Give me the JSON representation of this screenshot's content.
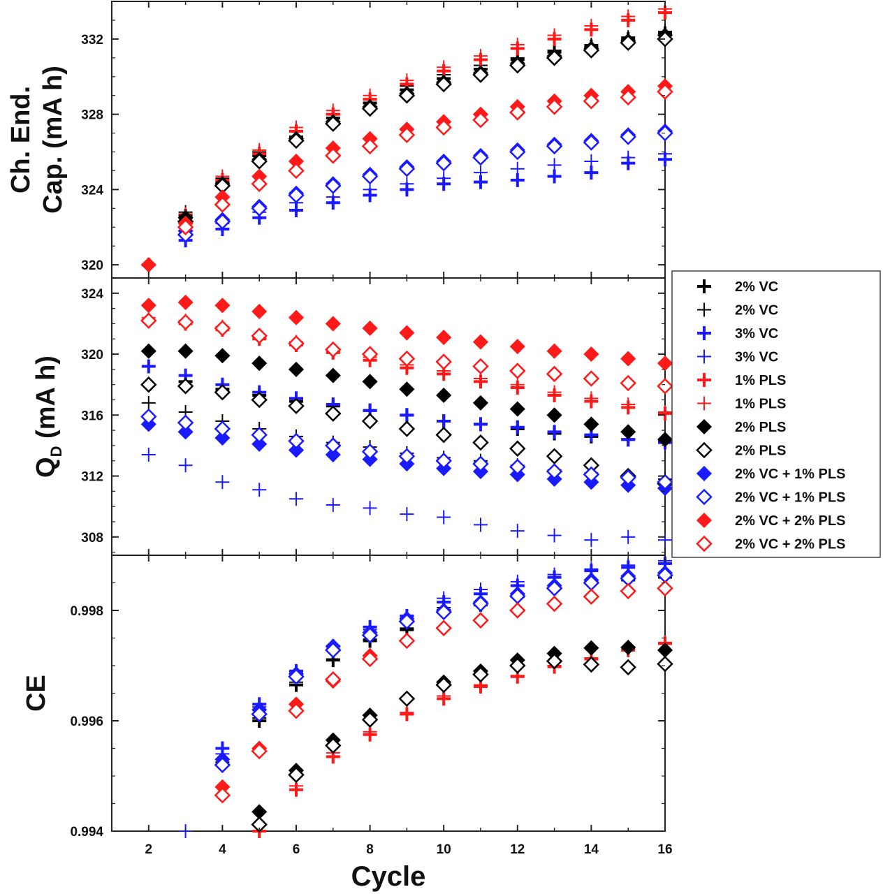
{
  "chart_data": {
    "type": "scatter",
    "x_axis": {
      "label": "Cycle",
      "range": [
        1,
        16
      ],
      "ticks": [
        2,
        4,
        6,
        8,
        10,
        12,
        14,
        16
      ],
      "tick_labels": [
        "2",
        "4",
        "6",
        "8",
        "10",
        "12",
        "14",
        "16"
      ]
    },
    "panels": [
      {
        "id": "charge_end_capacity",
        "ylabel_lines": [
          "Ch. End.",
          "Cap. (mA h)"
        ],
        "ylim": [
          319.3,
          334.0
        ],
        "yticks": [
          320,
          324,
          328,
          332
        ],
        "ytick_labels": [
          "320",
          "324",
          "328",
          "332"
        ]
      },
      {
        "id": "discharge_capacity",
        "ylabel": "QD (mA h)",
        "ylabel_main": "Q",
        "ylabel_sub": "D",
        "ylabel_rest": " (mA h)",
        "ylim": [
          306.8,
          325.0
        ],
        "yticks": [
          308,
          312,
          316,
          320,
          324
        ],
        "ytick_labels": [
          "308",
          "312",
          "316",
          "320",
          "324"
        ]
      },
      {
        "id": "coulombic_efficiency",
        "ylabel": "CE",
        "ylim": [
          0.994,
          0.999
        ],
        "yticks": [
          0.994,
          0.996,
          0.998
        ],
        "ytick_labels": [
          "0.994",
          "0.996",
          "0.998"
        ]
      }
    ],
    "legend": {
      "placement": "right",
      "entries": [
        {
          "label": "2% VC",
          "marker": "plus-bold",
          "color": "#000000"
        },
        {
          "label": "2% VC",
          "marker": "plus-thin",
          "color": "#000000"
        },
        {
          "label": "3% VC",
          "marker": "plus-bold",
          "color": "#1a1aff"
        },
        {
          "label": "3% VC",
          "marker": "plus-thin",
          "color": "#1a1aff"
        },
        {
          "label": "1% PLS",
          "marker": "plus-bold",
          "color": "#ff1a1a"
        },
        {
          "label": "1% PLS",
          "marker": "plus-thin",
          "color": "#ff1a1a"
        },
        {
          "label": "2% PLS",
          "marker": "diamond-filled",
          "color": "#000000"
        },
        {
          "label": "2% PLS",
          "marker": "diamond-open",
          "color": "#000000"
        },
        {
          "label": "2% VC + 1%  PLS",
          "marker": "diamond-filled",
          "color": "#1a1aff"
        },
        {
          "label": "2% VC + 1%  PLS",
          "marker": "diamond-open",
          "color": "#1a1aff"
        },
        {
          "label": "2% VC + 2%  PLS",
          "marker": "diamond-filled",
          "color": "#ff1a1a"
        },
        {
          "label": "2% VC + 2%  PLS",
          "marker": "diamond-open",
          "color": "#ff1a1a"
        }
      ]
    },
    "series": [
      {
        "name": "2% VC",
        "marker": "plus-bold",
        "color": "#000000",
        "x": [
          3,
          4,
          5,
          6,
          7,
          8,
          9,
          10,
          11,
          12,
          13,
          14,
          15,
          16
        ],
        "charge_end_capacity": [
          322.6,
          324.4,
          325.8,
          326.8,
          327.8,
          328.6,
          329.3,
          329.9,
          330.4,
          330.9,
          331.3,
          331.6,
          332.0,
          332.3
        ],
        "discharge_capacity": [
          318.2,
          317.7,
          317.3,
          316.9,
          316.6,
          316.3,
          316.0,
          315.6,
          315.4,
          315.1,
          314.8,
          314.6,
          314.4,
          314.3
        ],
        "coulombic_efficiency": [
          null,
          0.9952,
          0.996,
          0.99665,
          0.9971,
          0.99745,
          0.99765,
          0.998,
          0.9981,
          0.99825,
          0.9984,
          0.9985,
          0.99855,
          0.9986
        ]
      },
      {
        "name": "2% VC",
        "marker": "plus-thin",
        "color": "#000000",
        "x": [
          2,
          3,
          4,
          5,
          6,
          7,
          8,
          9,
          10,
          11,
          12,
          13,
          14,
          15,
          16
        ],
        "charge_end_capacity": [
          null,
          322.8,
          324.6,
          326.0,
          327.1,
          328.0,
          328.8,
          329.5,
          330.1,
          330.6,
          331.0,
          331.4,
          331.7,
          332.1,
          332.4
        ],
        "discharge_capacity": [
          316.8,
          316.2,
          315.6,
          315.1,
          314.6,
          314.2,
          313.9,
          313.5,
          313.2,
          313.0,
          312.7,
          312.4,
          312.2,
          312.0,
          311.8
        ],
        "coulombic_efficiency": [
          null,
          null,
          0.99525,
          0.99605,
          0.9967,
          0.99712,
          0.99748,
          0.99768,
          0.99805,
          0.99815,
          0.99828,
          0.99842,
          0.99852,
          0.99858,
          0.99862
        ]
      },
      {
        "name": "3% VC",
        "marker": "plus-bold",
        "color": "#1a1aff",
        "x": [
          2,
          3,
          4,
          5,
          6,
          7,
          8,
          9,
          10,
          11,
          12,
          13,
          14,
          15,
          16
        ],
        "charge_end_capacity": [
          null,
          321.3,
          321.9,
          322.5,
          322.9,
          323.3,
          323.7,
          324.0,
          324.3,
          324.4,
          324.5,
          324.7,
          324.9,
          325.4,
          325.6
        ],
        "discharge_capacity": [
          319.2,
          318.6,
          318.0,
          317.5,
          317.1,
          316.7,
          316.3,
          316.0,
          315.6,
          315.4,
          315.2,
          314.9,
          314.7,
          314.4,
          314.2
        ],
        "coulombic_efficiency": [
          null,
          null,
          0.9955,
          0.9963,
          0.9969,
          0.99735,
          0.9977,
          0.9979,
          0.99815,
          0.9983,
          0.99845,
          0.9986,
          0.99872,
          0.99878,
          0.99885
        ]
      },
      {
        "name": "3% VC",
        "marker": "plus-thin",
        "color": "#1a1aff",
        "x": [
          2,
          3,
          4,
          5,
          6,
          7,
          8,
          9,
          10,
          11,
          12,
          13,
          14,
          15,
          16
        ],
        "charge_end_capacity": [
          null,
          321.6,
          322.2,
          322.8,
          323.3,
          323.6,
          324.0,
          324.3,
          324.6,
          324.9,
          325.1,
          325.3,
          325.5,
          325.7,
          325.9
        ],
        "discharge_capacity": [
          313.4,
          312.7,
          311.6,
          311.1,
          310.5,
          310.1,
          309.9,
          309.5,
          309.3,
          308.8,
          308.4,
          308.1,
          307.8,
          308.0,
          307.8
        ],
        "coulombic_efficiency": [
          null,
          0.994,
          0.9954,
          0.99625,
          0.99685,
          0.9973,
          0.99765,
          0.99785,
          0.99822,
          0.99838,
          0.99852,
          0.99865,
          0.99875,
          0.99882,
          0.9989
        ]
      },
      {
        "name": "1% PLS",
        "marker": "plus-bold",
        "color": "#ff1a1a",
        "x": [
          2,
          3,
          4,
          5,
          6,
          7,
          8,
          9,
          10,
          11,
          12,
          13,
          14,
          15,
          16
        ],
        "charge_end_capacity": [
          320.0,
          322.5,
          324.5,
          325.9,
          327.1,
          328.0,
          328.8,
          329.6,
          330.3,
          330.9,
          331.5,
          332.0,
          332.5,
          333.0,
          333.4
        ],
        "discharge_capacity": [
          322.2,
          322.0,
          321.6,
          321.0,
          320.6,
          320.1,
          319.6,
          319.1,
          318.7,
          318.2,
          317.8,
          317.3,
          316.9,
          316.5,
          316.1
        ],
        "coulombic_efficiency": [
          null,
          null,
          null,
          0.994,
          0.99475,
          0.99535,
          0.99575,
          0.99612,
          0.9964,
          0.99662,
          0.9968,
          0.99698,
          0.99712,
          0.99728,
          0.9974
        ]
      },
      {
        "name": "1% PLS",
        "marker": "plus-thin",
        "color": "#ff1a1a",
        "x": [
          2,
          3,
          4,
          5,
          6,
          7,
          8,
          9,
          10,
          11,
          12,
          13,
          14,
          15,
          16
        ],
        "charge_end_capacity": [
          null,
          322.7,
          324.7,
          326.1,
          327.3,
          328.2,
          329.0,
          329.8,
          330.5,
          331.1,
          331.7,
          332.2,
          332.7,
          333.2,
          333.6
        ],
        "discharge_capacity": [
          322.4,
          322.2,
          321.8,
          321.2,
          320.8,
          320.2,
          319.8,
          319.3,
          318.9,
          318.4,
          318.0,
          317.5,
          317.1,
          316.7,
          316.2
        ],
        "coulombic_efficiency": [
          null,
          null,
          null,
          0.9941,
          0.99482,
          0.99542,
          0.9958,
          0.99615,
          0.99645,
          0.99665,
          0.99682,
          0.997,
          0.99714,
          0.9973,
          0.99742
        ]
      },
      {
        "name": "2% PLS",
        "marker": "diamond-filled",
        "color": "#000000",
        "x": [
          2,
          3,
          4,
          5,
          6,
          7,
          8,
          9,
          10,
          11,
          12,
          13,
          14,
          15,
          16
        ],
        "charge_end_capacity": [
          null,
          322.5,
          324.3,
          325.6,
          326.7,
          327.6,
          328.4,
          329.1,
          329.7,
          330.2,
          330.7,
          331.1,
          331.5,
          331.9,
          332.2
        ],
        "discharge_capacity": [
          320.2,
          320.2,
          319.9,
          319.4,
          319.0,
          318.6,
          318.2,
          317.7,
          317.3,
          316.8,
          316.4,
          316.0,
          315.4,
          314.9,
          314.4
        ],
        "coulombic_efficiency": [
          null,
          null,
          null,
          0.99435,
          0.9951,
          0.99565,
          0.9961,
          0.9964,
          0.9967,
          0.9969,
          0.9971,
          0.99722,
          0.99732,
          0.99733,
          0.99728
        ]
      },
      {
        "name": "2% PLS",
        "marker": "diamond-open",
        "color": "#000000",
        "x": [
          2,
          3,
          4,
          5,
          6,
          7,
          8,
          9,
          10,
          11,
          12,
          13,
          14,
          15,
          16
        ],
        "charge_end_capacity": [
          null,
          322.3,
          324.2,
          325.5,
          326.6,
          327.5,
          328.3,
          329.0,
          329.6,
          330.1,
          330.6,
          331.0,
          331.4,
          331.8,
          332.0
        ],
        "discharge_capacity": [
          318.0,
          317.9,
          317.5,
          317.0,
          316.6,
          316.1,
          315.6,
          315.1,
          314.7,
          314.2,
          313.8,
          313.3,
          312.7,
          312.0,
          311.5
        ],
        "coulombic_efficiency": [
          null,
          null,
          null,
          0.99412,
          0.99502,
          0.99555,
          0.99602,
          0.9964,
          0.99665,
          0.99684,
          0.997,
          0.99708,
          0.99702,
          0.99697,
          0.99703
        ]
      },
      {
        "name": "2% VC + 1%  PLS",
        "marker": "diamond-filled",
        "color": "#1a1aff",
        "x": [
          2,
          3,
          4,
          5,
          6,
          7,
          8,
          9,
          10,
          11,
          12,
          13,
          14,
          15,
          16
        ],
        "charge_end_capacity": [
          null,
          321.8,
          322.4,
          323.1,
          323.8,
          324.3,
          324.8,
          325.2,
          325.5,
          325.8,
          326.1,
          326.4,
          326.6,
          326.9,
          327.1
        ],
        "discharge_capacity": [
          315.4,
          314.9,
          314.5,
          314.1,
          313.7,
          313.4,
          313.1,
          312.8,
          312.5,
          312.3,
          312.1,
          311.8,
          311.6,
          311.4,
          311.2
        ],
        "coulombic_efficiency": [
          null,
          null,
          0.9953,
          0.9962,
          0.99685,
          0.99735,
          0.9976,
          0.99785,
          0.998,
          0.99815,
          0.9983,
          0.99845,
          0.99855,
          0.99862,
          0.99868
        ]
      },
      {
        "name": "2% VC + 1%  PLS",
        "marker": "diamond-open",
        "color": "#1a1aff",
        "x": [
          2,
          3,
          4,
          5,
          6,
          7,
          8,
          9,
          10,
          11,
          12,
          13,
          14,
          15,
          16
        ],
        "charge_end_capacity": [
          null,
          321.6,
          322.3,
          323.0,
          323.7,
          324.2,
          324.7,
          325.1,
          325.4,
          325.7,
          326.0,
          326.3,
          326.5,
          326.8,
          327.0
        ],
        "discharge_capacity": [
          315.9,
          315.5,
          315.1,
          314.7,
          314.3,
          314.0,
          313.6,
          313.3,
          313.0,
          312.8,
          312.6,
          312.3,
          312.1,
          311.9,
          311.6
        ],
        "coulombic_efficiency": [
          null,
          null,
          0.9952,
          0.99612,
          0.9968,
          0.99728,
          0.99755,
          0.9978,
          0.99797,
          0.99812,
          0.99826,
          0.9984,
          0.9985,
          0.99858,
          0.99864
        ]
      },
      {
        "name": "2% VC + 2%  PLS",
        "marker": "diamond-filled",
        "color": "#ff1a1a",
        "x": [
          2,
          3,
          4,
          5,
          6,
          7,
          8,
          9,
          10,
          11,
          12,
          13,
          14,
          15,
          16
        ],
        "charge_end_capacity": [
          320.0,
          322.2,
          323.6,
          324.7,
          325.5,
          326.2,
          326.7,
          327.2,
          327.6,
          328.0,
          328.4,
          328.7,
          329.0,
          329.2,
          329.5
        ],
        "discharge_capacity": [
          323.2,
          323.4,
          323.2,
          322.8,
          322.4,
          322.0,
          321.7,
          321.4,
          321.1,
          320.8,
          320.5,
          320.2,
          320.0,
          319.7,
          319.4
        ],
        "coulombic_efficiency": [
          null,
          null,
          0.9948,
          0.9955,
          0.9963,
          0.99672,
          0.99718,
          0.99745,
          0.99768,
          0.99782,
          0.998,
          0.99812,
          0.99825,
          0.99835,
          0.9984
        ]
      },
      {
        "name": "2% VC + 2%  PLS",
        "marker": "diamond-open",
        "color": "#ff1a1a",
        "x": [
          2,
          3,
          4,
          5,
          6,
          7,
          8,
          9,
          10,
          11,
          12,
          13,
          14,
          15,
          16
        ],
        "charge_end_capacity": [
          null,
          322.0,
          323.2,
          324.3,
          325.0,
          325.8,
          326.3,
          326.9,
          327.3,
          327.7,
          328.1,
          328.4,
          328.7,
          328.9,
          329.2
        ],
        "discharge_capacity": [
          322.2,
          322.1,
          321.7,
          321.2,
          320.7,
          320.3,
          320.0,
          319.7,
          319.5,
          319.2,
          318.9,
          318.7,
          318.4,
          318.1,
          317.9
        ],
        "coulombic_efficiency": [
          null,
          null,
          0.99465,
          0.99545,
          0.99618,
          0.99675,
          0.99712,
          0.99745,
          0.99768,
          0.99782,
          0.998,
          0.99812,
          0.99825,
          0.99835,
          0.9984
        ]
      }
    ]
  }
}
